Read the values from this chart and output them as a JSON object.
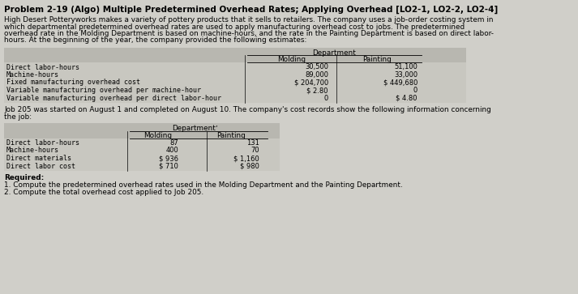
{
  "title": "Problem 2-19 (Algo) Multiple Predetermined Overhead Rates; Applying Overhead [LO2-1, LO2-2, LO2-4]",
  "body_text_lines": [
    "High Desert Potteryworks makes a variety of pottery products that it sells to retailers. The company uses a job-order costing system in",
    "which departmental predetermined overhead rates are used to apply manufacturing overhead cost to jobs. The predetermined",
    "overhead rate in the Molding Department is based on machine-hours, and the rate in the Painting Department is based on direct labor-",
    "hours. At the beginning of the year, the company provided the following estimates:"
  ],
  "table1_header": "Department",
  "table1_cols": [
    "Molding",
    "Painting"
  ],
  "table1_rows": [
    "Direct labor-hours",
    "Machine-hours",
    "Fixed manufacturing overhead cost",
    "Variable manufacturing overhead per machine-hour",
    "Variable manufacturing overhead per direct labor-hour"
  ],
  "table1_data": [
    [
      "30,500",
      "51,100"
    ],
    [
      "89,000",
      "33,000"
    ],
    [
      "$ 204,700",
      "$ 449,680"
    ],
    [
      "$ 2.80",
      "0"
    ],
    [
      "0",
      "$ 4.80"
    ]
  ],
  "mid_text_lines": [
    "Job 205 was started on August 1 and completed on August 10. The company's cost records show the following information concerning",
    "the job:"
  ],
  "table2_header": "Department",
  "table2_cols": [
    "Molding",
    "Painting"
  ],
  "table2_rows": [
    "Direct labor-hours",
    "Machine-hours",
    "Direct materials",
    "Direct labor cost"
  ],
  "table2_data": [
    [
      "87",
      "131"
    ],
    [
      "400",
      "70"
    ],
    [
      "$ 936",
      "$ 1,160"
    ],
    [
      "$ 710",
      "$ 980"
    ]
  ],
  "required_label": "Required:",
  "required_items": [
    "1. Compute the predetermined overhead rates used in the Molding Department and the Painting Department.",
    "2. Compute the total overhead cost applied to Job 205."
  ],
  "bg_color": "#d0cfc9",
  "table_bg": "#c8c7c0",
  "header_row_bg": "#b8b7b0",
  "text_color": "#000000",
  "title_color": "#000000",
  "mono_font": "DejaVu Sans Mono",
  "sans_font": "DejaVu Sans"
}
